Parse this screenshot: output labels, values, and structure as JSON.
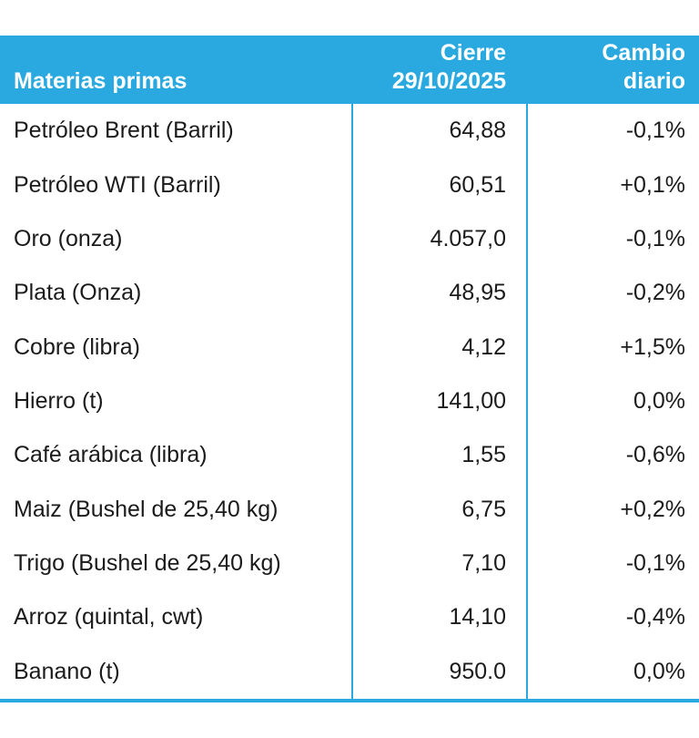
{
  "header": {
    "col1": "Materias primas",
    "col2": [
      "Cierre",
      "29/10/2025"
    ],
    "col3": [
      "Cambio",
      "diario"
    ]
  },
  "chart_data": {
    "type": "table",
    "title": "Materias primas — Cierre 29/10/2025 y Cambio diario",
    "columns": [
      "Materias primas",
      "Cierre 29/10/2025",
      "Cambio diario"
    ],
    "rows": [
      {
        "name": "Petróleo Brent (Barril)",
        "close": "64,88",
        "change": "-0,1%"
      },
      {
        "name": "Petróleo WTI (Barril)",
        "close": "60,51",
        "change": "+0,1%"
      },
      {
        "name": "Oro (onza)",
        "close": "4.057,0",
        "change": "-0,1%"
      },
      {
        "name": "Plata (Onza)",
        "close": "48,95",
        "change": "-0,2%"
      },
      {
        "name": "Cobre (libra)",
        "close": "4,12",
        "change": "+1,5%"
      },
      {
        "name": "Hierro (t)",
        "close": "141,00",
        "change": "0,0%"
      },
      {
        "name": "Café arábica (libra)",
        "close": "1,55",
        "change": "-0,6%"
      },
      {
        "name": "Maiz (Bushel de 25,40 kg)",
        "close": "6,75",
        "change": "+0,2%"
      },
      {
        "name": "Trigo (Bushel de 25,40 kg)",
        "close": "7,10",
        "change": "-0,1%"
      },
      {
        "name": "Arroz (quintal, cwt)",
        "close": "14,10",
        "change": "-0,4%"
      },
      {
        "name": "Banano (t)",
        "close": "950.0",
        "change": "0,0%"
      }
    ]
  },
  "colors": {
    "accent_blue": "#29A9E0",
    "header_text": "#FFFFFF",
    "body_text": "#1B1B1B",
    "background": "#FFFFFF"
  }
}
